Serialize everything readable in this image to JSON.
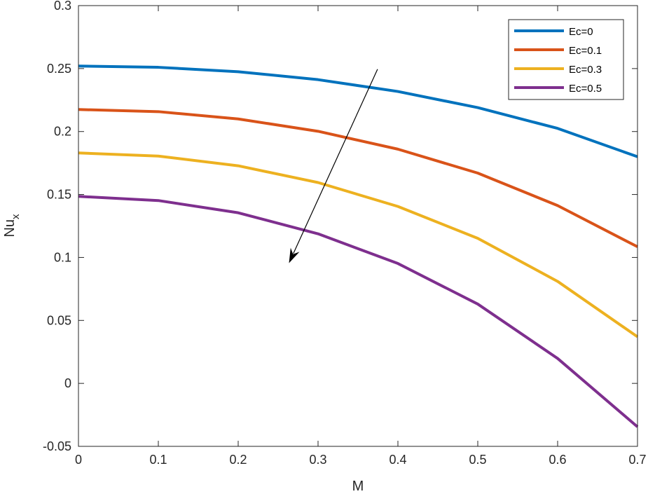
{
  "chart_data": {
    "type": "line",
    "xlabel": "M",
    "ylabel_main": "Nu",
    "ylabel_sub": "x",
    "xlim": [
      0,
      0.7
    ],
    "ylim": [
      -0.05,
      0.3
    ],
    "x": [
      0,
      0.1,
      0.2,
      0.3,
      0.4,
      0.5,
      0.6,
      0.7
    ],
    "x_tick_labels": [
      "0",
      "0.1",
      "0.2",
      "0.3",
      "0.4",
      "0.5",
      "0.6",
      "0.7"
    ],
    "y_ticks": [
      -0.05,
      0,
      0.05,
      0.1,
      0.15,
      0.2,
      0.25,
      0.3
    ],
    "y_tick_labels": [
      "-0.05",
      "0",
      "0.05",
      "0.1",
      "0.15",
      "0.2",
      "0.25",
      "0.3"
    ],
    "grid": false,
    "legend_position": "top-right",
    "series": [
      {
        "name": "Ec=0",
        "color": "#0072BD",
        "values": [
          0.252,
          0.251,
          0.2475,
          0.2412,
          0.2318,
          0.219,
          0.2025,
          0.18
        ]
      },
      {
        "name": "Ec=0.1",
        "color": "#D95319",
        "values": [
          0.2175,
          0.2158,
          0.21,
          0.2002,
          0.186,
          0.167,
          0.1412,
          0.1085
        ]
      },
      {
        "name": "Ec=0.3",
        "color": "#EDB120",
        "values": [
          0.183,
          0.1805,
          0.1728,
          0.1595,
          0.1405,
          0.1152,
          0.081,
          0.037
        ]
      },
      {
        "name": "Ec=0.5",
        "color": "#7E2F8E",
        "values": [
          0.1485,
          0.1452,
          0.1355,
          0.1188,
          0.0952,
          0.063,
          0.0198,
          -0.0345
        ]
      }
    ],
    "annotation": {
      "type": "arrow",
      "from": [
        0.3745,
        0.2495
      ],
      "to": [
        0.2636,
        0.0955
      ],
      "color": "#000000"
    }
  }
}
